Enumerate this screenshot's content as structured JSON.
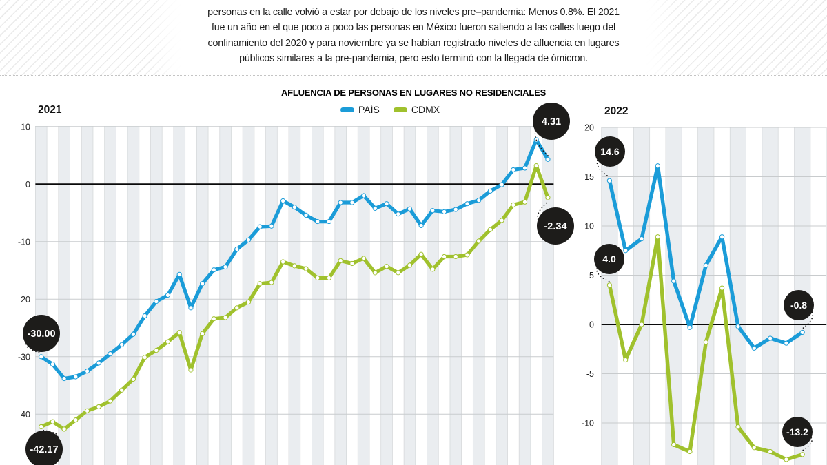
{
  "intro": {
    "lines": [
      "personas en la calle volvió a estar por debajo de los niveles pre–pandemia: Menos 0.8%. El 2021",
      "fue un año en el que poco a poco las personas en México fueron saliendo a las calles luego del",
      "confinamiento del 2020 y para noviembre ya se habían registrado niveles de afluencia en lugares",
      "públicos similares a la pre-pandemia, pero esto terminó con la llegada de ómicron."
    ]
  },
  "header": {
    "title": "AFLUENCIA DE PERSONAS EN LUGARES NO RESIDENCIALES"
  },
  "legend": {
    "items": [
      {
        "label": "PAÍS",
        "color": "#1b9cd8"
      },
      {
        "label": "CDMX",
        "color": "#a0c12d"
      }
    ]
  },
  "palette": {
    "pais": "#1b9cd8",
    "cdmx": "#a0c12d",
    "annotation_bg": "#1d1c1a",
    "annotation_text": "#ffffff",
    "band_fill": "#eaedf0",
    "vgrid": "#d6d9db",
    "hgrid": "#c8cbcd",
    "zero_line": "#0a0a0a",
    "tick_text": "#242424"
  },
  "chart_data": [
    {
      "type": "line",
      "title": "2021",
      "ylabel": "",
      "xlabel": "",
      "yticks": [
        10,
        0,
        -10,
        -20,
        -30,
        -40
      ],
      "ylim": [
        -49,
        10
      ],
      "grid": true,
      "legend_position": "top-center",
      "series": [
        {
          "name": "PAÍS",
          "values": [
            -30.0,
            -31.3,
            -33.8,
            -33.5,
            -32.5,
            -31.1,
            -29.5,
            -27.9,
            -26.1,
            -22.9,
            -20.4,
            -19.3,
            -15.7,
            -21.5,
            -17.3,
            -14.9,
            -14.4,
            -11.3,
            -9.7,
            -7.4,
            -7.3,
            -2.9,
            -4.0,
            -5.4,
            -6.5,
            -6.5,
            -3.2,
            -3.2,
            -2.0,
            -4.2,
            -3.4,
            -5.2,
            -4.3,
            -7.2,
            -4.6,
            -4.8,
            -4.4,
            -3.4,
            -2.8,
            -1.2,
            -0.1,
            2.5,
            2.8,
            7.7,
            4.31
          ]
        },
        {
          "name": "CDMX",
          "values": [
            -42.17,
            -41.3,
            -42.6,
            -41.0,
            -39.4,
            -38.7,
            -37.7,
            -35.8,
            -33.9,
            -30.1,
            -28.9,
            -27.4,
            -25.8,
            -32.3,
            -26.0,
            -23.4,
            -23.2,
            -21.5,
            -20.5,
            -17.3,
            -17.1,
            -13.5,
            -14.2,
            -14.7,
            -16.3,
            -16.3,
            -13.3,
            -13.8,
            -12.9,
            -15.4,
            -14.3,
            -15.4,
            -14.1,
            -12.2,
            -14.8,
            -12.6,
            -12.6,
            -12.3,
            -9.9,
            -7.9,
            -6.3,
            -3.6,
            -3.1,
            3.2,
            -2.34
          ]
        }
      ],
      "annotations": [
        {
          "text": "-30.00",
          "series": "PAÍS",
          "index": 0
        },
        {
          "text": "-42.17",
          "series": "CDMX",
          "index": 0
        },
        {
          "text": "4.31",
          "series": "PAÍS",
          "index": 44
        },
        {
          "text": "-2.34",
          "series": "CDMX",
          "index": 44
        }
      ]
    },
    {
      "type": "line",
      "title": "2022",
      "ylabel": "",
      "xlabel": "",
      "yticks": [
        20,
        15,
        10,
        5,
        0,
        -5,
        -10
      ],
      "ylim": [
        -14.3,
        20
      ],
      "grid": true,
      "series": [
        {
          "name": "PAÍS",
          "values": [
            14.6,
            7.5,
            8.7,
            16.1,
            4.4,
            -0.3,
            6.0,
            8.9,
            -0.2,
            -2.4,
            -1.4,
            -1.9,
            -0.8
          ]
        },
        {
          "name": "CDMX",
          "values": [
            4.0,
            -3.6,
            0.0,
            8.9,
            -12.2,
            -12.9,
            -1.8,
            3.7,
            -10.4,
            -12.5,
            -12.9,
            -13.7,
            -13.2
          ]
        }
      ],
      "annotations": [
        {
          "text": "14.6",
          "series": "PAÍS",
          "index": 0
        },
        {
          "text": "4.0",
          "series": "CDMX",
          "index": 0
        },
        {
          "text": "-0.8",
          "series": "PAÍS",
          "index": 12
        },
        {
          "text": "-13.2",
          "series": "CDMX",
          "index": 12
        }
      ]
    }
  ]
}
